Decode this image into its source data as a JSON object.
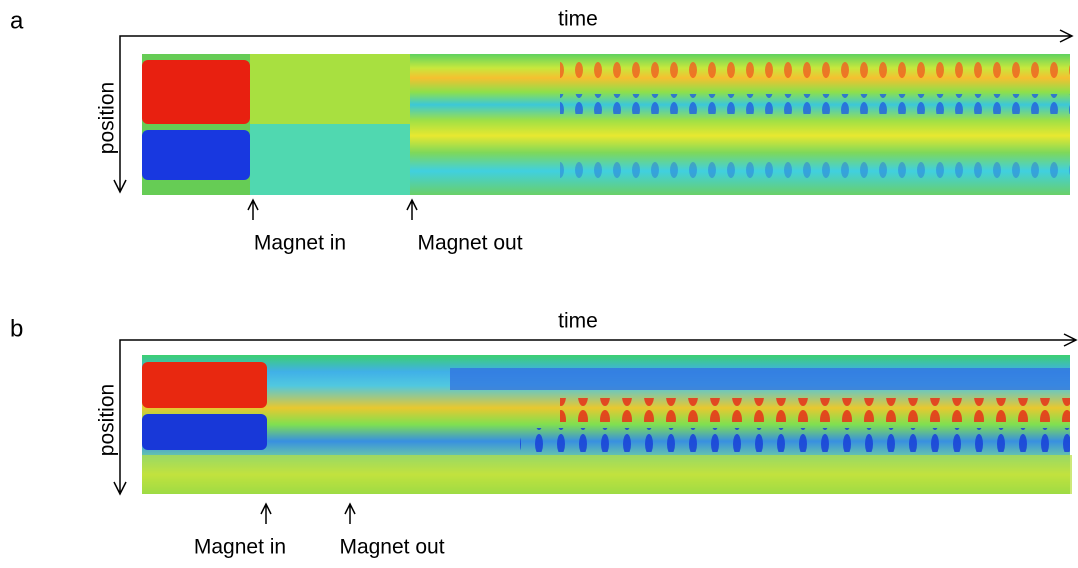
{
  "panels": [
    {
      "label": "a",
      "x_axis_label": "time",
      "y_axis_label": "position",
      "annotations": [
        "Magnet in",
        "Magnet out"
      ]
    },
    {
      "label": "b",
      "x_axis_label": "time",
      "y_axis_label": "position",
      "annotations": [
        "Magnet in",
        "Magnet out"
      ]
    }
  ]
}
